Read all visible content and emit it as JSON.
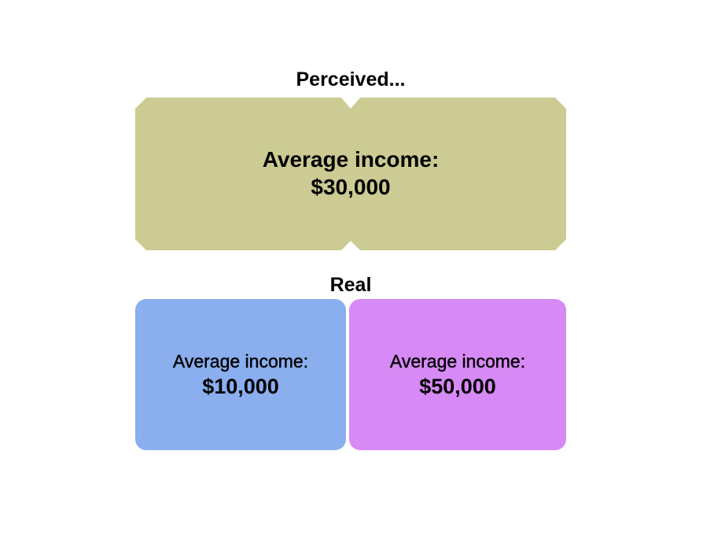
{
  "perceived": {
    "title": "Perceived...",
    "label": "Average income:",
    "value": "$30,000",
    "color": "#cbcb93"
  },
  "real": {
    "title": "Real",
    "groups": [
      {
        "label": "Average income:",
        "value": "$10,000",
        "color": "#8aaeee"
      },
      {
        "label": "Average income:",
        "value": "$50,000",
        "color": "#d789f5"
      }
    ]
  }
}
